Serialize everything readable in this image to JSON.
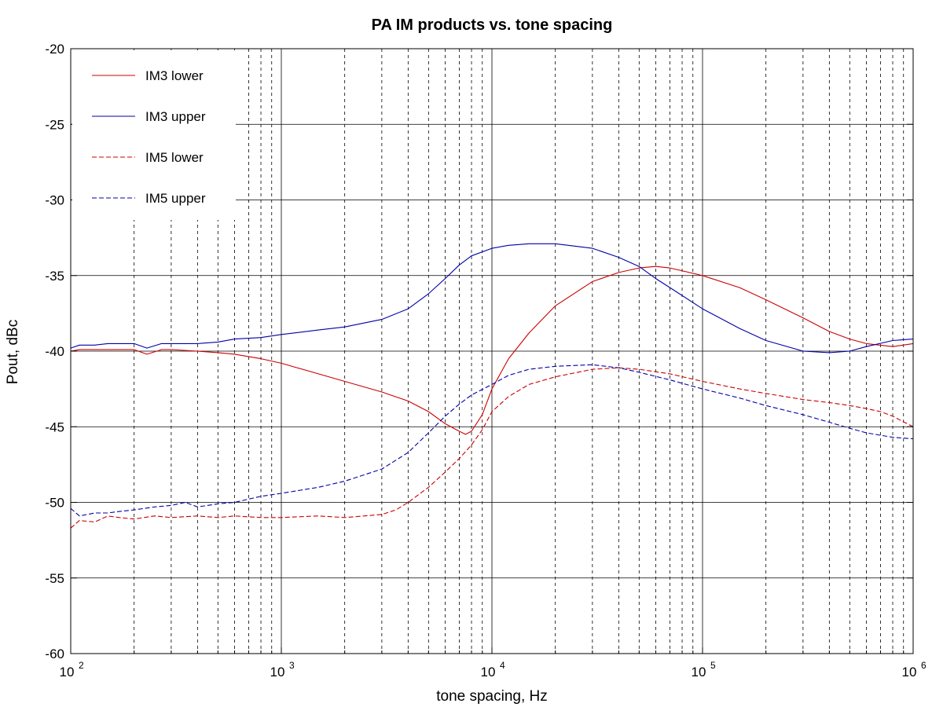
{
  "colors": {
    "red": "#cc0000",
    "blue": "#0000aa",
    "grid": "#000000",
    "background": "#ffffff"
  },
  "chart_data": {
    "type": "line",
    "title": "PA IM products vs. tone spacing",
    "xlabel": "tone spacing, Hz",
    "ylabel": "Pout, dBc",
    "xscale": "log",
    "xlim": [
      100,
      1000000
    ],
    "ylim": [
      -60,
      -20
    ],
    "xticks": [
      {
        "base": "10",
        "exp": "2",
        "value": 100
      },
      {
        "base": "10",
        "exp": "3",
        "value": 1000
      },
      {
        "base": "10",
        "exp": "4",
        "value": 10000
      },
      {
        "base": "10",
        "exp": "5",
        "value": 100000
      },
      {
        "base": "10",
        "exp": "6",
        "value": 1000000
      }
    ],
    "yticks": [
      "-60",
      "-55",
      "-50",
      "-45",
      "-40",
      "-35",
      "-30",
      "-25",
      "-20"
    ],
    "grid": {
      "major": true,
      "minor_x": "dashed"
    },
    "legend": {
      "position": "top-left"
    },
    "series": [
      {
        "name": "IM3 lower",
        "color": "#cc0000",
        "dash": "solid",
        "x": [
          100,
          110,
          130,
          150,
          200,
          230,
          270,
          300,
          400,
          500,
          600,
          800,
          1000,
          1500,
          2000,
          3000,
          4000,
          5000,
          6000,
          7000,
          7500,
          8000,
          9000,
          10000,
          12000,
          15000,
          20000,
          30000,
          40000,
          50000,
          60000,
          70000,
          100000,
          150000,
          200000,
          300000,
          400000,
          500000,
          600000,
          800000,
          1000000
        ],
        "y": [
          -40.0,
          -39.9,
          -39.9,
          -39.9,
          -39.9,
          -40.2,
          -39.9,
          -39.9,
          -40.0,
          -40.1,
          -40.2,
          -40.5,
          -40.8,
          -41.5,
          -42.0,
          -42.7,
          -43.3,
          -44.0,
          -44.8,
          -45.3,
          -45.5,
          -45.3,
          -44.2,
          -42.5,
          -40.5,
          -38.8,
          -37.0,
          -35.4,
          -34.8,
          -34.5,
          -34.4,
          -34.5,
          -35.0,
          -35.8,
          -36.6,
          -37.8,
          -38.7,
          -39.2,
          -39.5,
          -39.7,
          -39.5
        ]
      },
      {
        "name": "IM3 upper",
        "color": "#0000aa",
        "dash": "solid",
        "x": [
          100,
          110,
          130,
          150,
          200,
          230,
          270,
          300,
          400,
          500,
          600,
          800,
          1000,
          1500,
          2000,
          3000,
          4000,
          5000,
          6000,
          7000,
          8000,
          10000,
          12000,
          15000,
          20000,
          30000,
          40000,
          50000,
          60000,
          70000,
          100000,
          150000,
          200000,
          300000,
          400000,
          500000,
          600000,
          800000,
          1000000
        ],
        "y": [
          -39.8,
          -39.6,
          -39.6,
          -39.5,
          -39.5,
          -39.8,
          -39.5,
          -39.5,
          -39.5,
          -39.4,
          -39.2,
          -39.1,
          -38.9,
          -38.6,
          -38.4,
          -37.9,
          -37.2,
          -36.2,
          -35.2,
          -34.3,
          -33.7,
          -33.2,
          -33.0,
          -32.9,
          -32.9,
          -33.2,
          -33.8,
          -34.4,
          -35.2,
          -35.8,
          -37.2,
          -38.5,
          -39.3,
          -40.0,
          -40.1,
          -40.0,
          -39.7,
          -39.3,
          -39.2
        ]
      },
      {
        "name": "IM5 lower",
        "color": "#cc0000",
        "dash": "dashed",
        "x": [
          100,
          110,
          130,
          150,
          170,
          200,
          250,
          300,
          400,
          500,
          600,
          800,
          1000,
          1500,
          2000,
          3000,
          3500,
          4000,
          5000,
          6000,
          7000,
          8000,
          9000,
          10000,
          12000,
          15000,
          20000,
          30000,
          40000,
          50000,
          70000,
          100000,
          150000,
          200000,
          300000,
          400000,
          500000,
          600000,
          700000,
          800000,
          1000000
        ],
        "y": [
          -51.7,
          -51.2,
          -51.3,
          -50.9,
          -51.0,
          -51.1,
          -50.9,
          -51.0,
          -50.9,
          -51.0,
          -50.9,
          -51.0,
          -51.0,
          -50.9,
          -51.0,
          -50.8,
          -50.5,
          -50.0,
          -49.0,
          -48.0,
          -47.1,
          -46.2,
          -45.2,
          -44.0,
          -43.0,
          -42.2,
          -41.7,
          -41.2,
          -41.1,
          -41.2,
          -41.5,
          -42.0,
          -42.5,
          -42.8,
          -43.2,
          -43.4,
          -43.6,
          -43.8,
          -44.0,
          -44.3,
          -45.0
        ]
      },
      {
        "name": "IM5 upper",
        "color": "#0000aa",
        "dash": "dashed",
        "x": [
          100,
          110,
          130,
          150,
          170,
          200,
          250,
          300,
          350,
          400,
          500,
          600,
          800,
          1000,
          1500,
          2000,
          3000,
          4000,
          5000,
          6000,
          7000,
          8000,
          10000,
          12000,
          15000,
          20000,
          30000,
          40000,
          50000,
          70000,
          100000,
          150000,
          200000,
          300000,
          400000,
          500000,
          600000,
          800000,
          1000000
        ],
        "y": [
          -50.4,
          -50.9,
          -50.7,
          -50.7,
          -50.6,
          -50.5,
          -50.3,
          -50.2,
          -50.0,
          -50.3,
          -50.1,
          -50.0,
          -49.6,
          -49.4,
          -49.0,
          -48.6,
          -47.8,
          -46.7,
          -45.4,
          -44.3,
          -43.5,
          -42.9,
          -42.2,
          -41.6,
          -41.2,
          -41.0,
          -40.9,
          -41.1,
          -41.4,
          -41.9,
          -42.5,
          -43.1,
          -43.6,
          -44.2,
          -44.7,
          -45.1,
          -45.4,
          -45.7,
          -45.8
        ]
      }
    ]
  }
}
